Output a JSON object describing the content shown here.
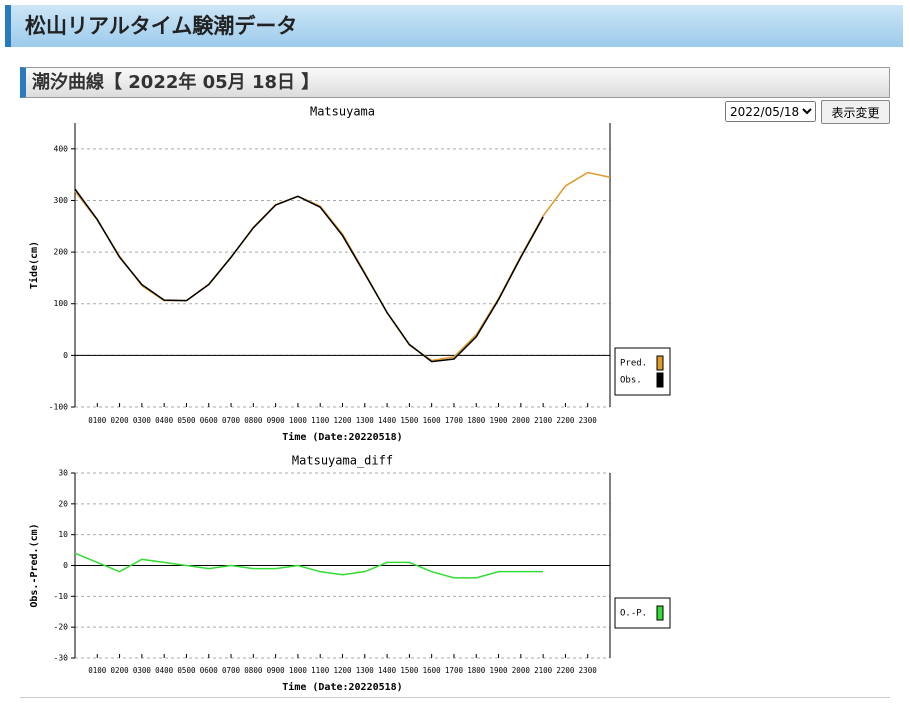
{
  "header": {
    "title": "松山リアルタイム験潮データ"
  },
  "section": {
    "title": "潮汐曲線【 2022年 05月 18日 】"
  },
  "controls": {
    "date_option": "2022/05/18",
    "button": "表示変更"
  },
  "chart_data": [
    {
      "type": "line",
      "title": "Matsuyama",
      "x_label": "Time (Date:20220518)",
      "y_label": "Tide(cm)",
      "x": [
        0,
        1,
        2,
        3,
        4,
        5,
        6,
        7,
        8,
        9,
        10,
        11,
        12,
        13,
        14,
        15,
        16,
        17,
        18,
        19,
        20,
        21,
        22,
        23,
        24
      ],
      "series": [
        {
          "name": "Pred.",
          "color": "#e09a2a",
          "values": [
            318,
            262,
            192,
            135,
            106,
            106,
            138,
            190,
            248,
            292,
            308,
            289,
            235,
            160,
            82,
            20,
            -10,
            -3,
            40,
            110,
            192,
            270,
            328,
            354,
            345
          ]
        },
        {
          "name": "Obs.",
          "color": "#000000",
          "values": [
            322,
            263,
            190,
            137,
            107,
            106,
            137,
            190,
            247,
            291,
            308,
            287,
            232,
            158,
            83,
            21,
            -12,
            -7,
            36,
            108,
            190,
            268,
            null,
            null,
            null
          ]
        }
      ],
      "xlim": [
        0,
        24
      ],
      "ylim": [
        -100,
        450
      ],
      "xticks": [
        {
          "value": 1,
          "label": "0100"
        },
        {
          "value": 2,
          "label": "0200"
        },
        {
          "value": 3,
          "label": "0300"
        },
        {
          "value": 4,
          "label": "0400"
        },
        {
          "value": 5,
          "label": "0500"
        },
        {
          "value": 6,
          "label": "0600"
        },
        {
          "value": 7,
          "label": "0700"
        },
        {
          "value": 8,
          "label": "0800"
        },
        {
          "value": 9,
          "label": "0900"
        },
        {
          "value": 10,
          "label": "1000"
        },
        {
          "value": 11,
          "label": "1100"
        },
        {
          "value": 12,
          "label": "1200"
        },
        {
          "value": 13,
          "label": "1300"
        },
        {
          "value": 14,
          "label": "1400"
        },
        {
          "value": 15,
          "label": "1500"
        },
        {
          "value": 16,
          "label": "1600"
        },
        {
          "value": 17,
          "label": "1700"
        },
        {
          "value": 18,
          "label": "1800"
        },
        {
          "value": 19,
          "label": "1900"
        },
        {
          "value": 20,
          "label": "2000"
        },
        {
          "value": 21,
          "label": "2100"
        },
        {
          "value": 22,
          "label": "2200"
        },
        {
          "value": 23,
          "label": "2300"
        }
      ],
      "yticks": [
        -100,
        0,
        100,
        200,
        300,
        400
      ],
      "grid": true,
      "legend": "right"
    },
    {
      "type": "line",
      "title": "Matsuyama_diff",
      "x_label": "Time (Date:20220518)",
      "y_label": "Obs.-Pred.(cm)",
      "x": [
        0,
        1,
        2,
        3,
        4,
        5,
        6,
        7,
        8,
        9,
        10,
        11,
        12,
        13,
        14,
        15,
        16,
        17,
        18,
        19,
        20,
        21
      ],
      "series": [
        {
          "name": "O.-P.",
          "color": "#33dd33",
          "values": [
            4,
            1,
            -2,
            2,
            1,
            0,
            -1,
            0,
            -1,
            -1,
            0,
            -2,
            -3,
            -2,
            1,
            1,
            -2,
            -4,
            -4,
            -2,
            -2,
            -2
          ]
        }
      ],
      "xlim": [
        0,
        24
      ],
      "ylim": [
        -30,
        30
      ],
      "xticks": [
        {
          "value": 1,
          "label": "0100"
        },
        {
          "value": 2,
          "label": "0200"
        },
        {
          "value": 3,
          "label": "0300"
        },
        {
          "value": 4,
          "label": "0400"
        },
        {
          "value": 5,
          "label": "0500"
        },
        {
          "value": 6,
          "label": "0600"
        },
        {
          "value": 7,
          "label": "0700"
        },
        {
          "value": 8,
          "label": "0800"
        },
        {
          "value": 9,
          "label": "0900"
        },
        {
          "value": 10,
          "label": "1000"
        },
        {
          "value": 11,
          "label": "1100"
        },
        {
          "value": 12,
          "label": "1200"
        },
        {
          "value": 13,
          "label": "1300"
        },
        {
          "value": 14,
          "label": "1400"
        },
        {
          "value": 15,
          "label": "1500"
        },
        {
          "value": 16,
          "label": "1600"
        },
        {
          "value": 17,
          "label": "1700"
        },
        {
          "value": 18,
          "label": "1800"
        },
        {
          "value": 19,
          "label": "1900"
        },
        {
          "value": 20,
          "label": "2000"
        },
        {
          "value": 21,
          "label": "2100"
        },
        {
          "value": 22,
          "label": "2200"
        },
        {
          "value": 23,
          "label": "2300"
        }
      ],
      "yticks": [
        -30,
        -20,
        -10,
        0,
        10,
        20,
        30
      ],
      "grid": true,
      "legend": "right"
    }
  ]
}
